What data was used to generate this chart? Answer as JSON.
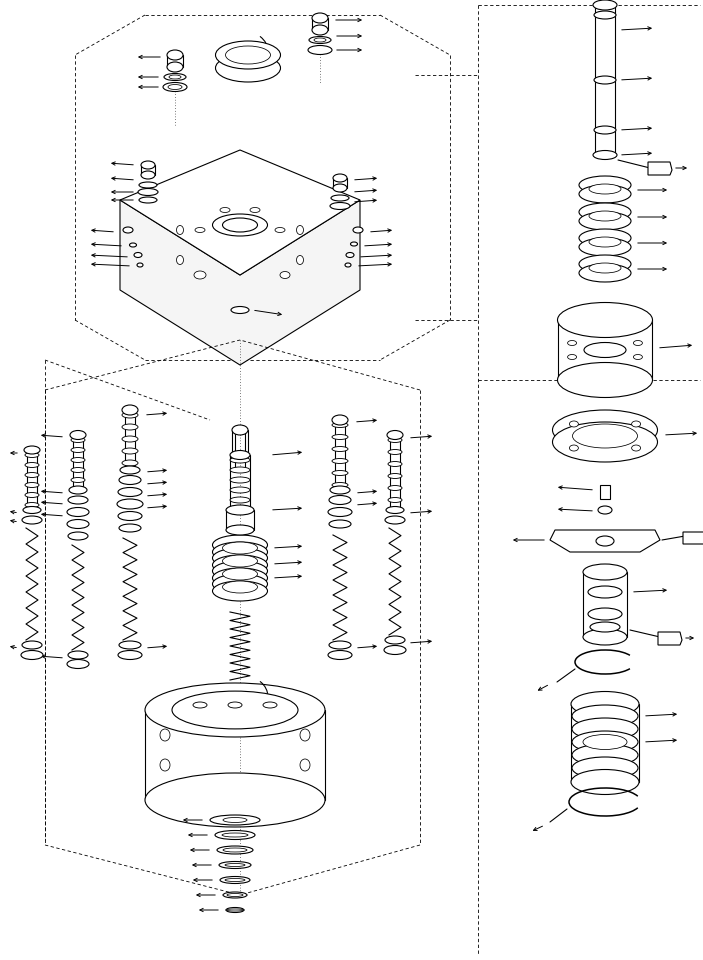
{
  "bg_color": "#ffffff",
  "line_color": "#000000",
  "lw": 0.8,
  "figsize": [
    7.03,
    9.6
  ],
  "dpi": 100
}
